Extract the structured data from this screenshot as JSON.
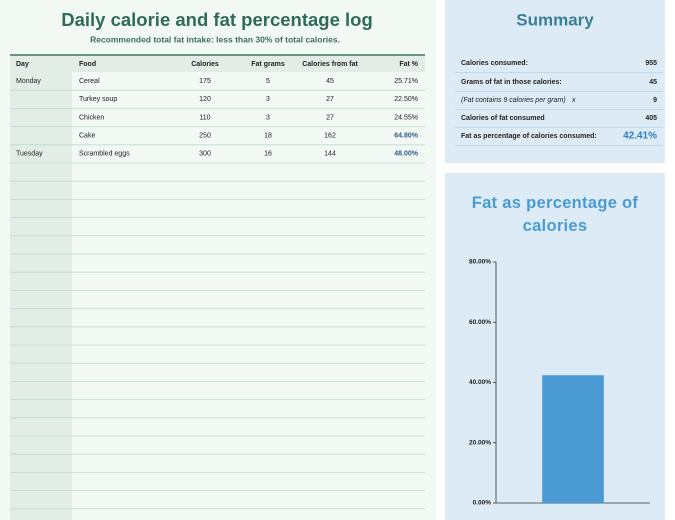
{
  "header": {
    "title": "Daily calorie and fat percentage log",
    "subtitle": "Recommended total fat intake: less than 30% of total calories."
  },
  "table": {
    "columns": [
      "Day",
      "Food",
      "Calories",
      "Fat grams",
      "Calories from fat",
      "Fat %"
    ],
    "rows": [
      [
        "Monday",
        "Cereal",
        "175",
        "5",
        "45",
        "25.71%"
      ],
      [
        null,
        "Turkey soup",
        "120",
        "3",
        "27",
        "22.50%"
      ],
      [
        null,
        "Chicken",
        "110",
        "3",
        "27",
        "24.55%"
      ],
      [
        null,
        "Cake",
        "250",
        "18",
        "162",
        "64.80%"
      ],
      [
        "Tuesday",
        "Scrambled eggs",
        "300",
        "16",
        "144",
        "48.00%"
      ]
    ]
  },
  "summary": {
    "title": "Summary",
    "items": [
      {
        "label": "Calories consumed:",
        "value": "955"
      },
      {
        "label": "Grams of fat in those calories:",
        "value": "45"
      },
      {
        "label": "(Fat contains 9 calories per gram)",
        "mark": "x",
        "value": "9"
      },
      {
        "label": "Calories of fat consumed",
        "value": "405"
      },
      {
        "label": "Fat as percentage of calories consumed:",
        "value": "42.41%"
      }
    ]
  },
  "chart_data": {
    "type": "bar",
    "title": "Fat as percentage of calories",
    "categories": [
      null
    ],
    "values": [
      42.41
    ],
    "color": "#4a9ad4",
    "ylim": [
      0,
      80
    ],
    "yticks": [
      {
        "value": 0,
        "label": "0.00%"
      },
      {
        "value": 20,
        "label": "20.00%"
      },
      {
        "value": 40,
        "label": "40.00%"
      },
      {
        "value": 60,
        "label": "60.00%"
      },
      {
        "value": 80,
        "label": "80.00%"
      }
    ]
  }
}
